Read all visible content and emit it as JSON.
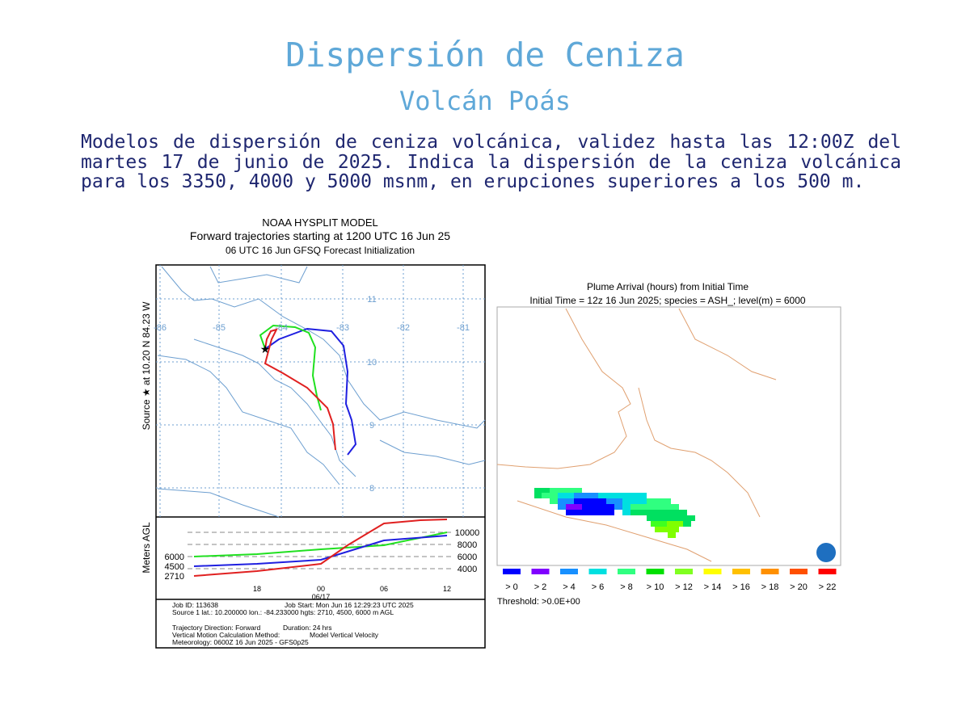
{
  "header": {
    "title": "Dispersión de Ceniza",
    "subtitle": "Volcán Poás"
  },
  "description": "Modelos de dispersión de ceniza volcánica, validez hasta las 12:00Z del martes 17 de junio de 2025. Indica la dispersión de la ceniza volcánica para los 3350, 4000 y 5000 msnm, en erupciones superiores a los 500 m.",
  "trajectory_figure": {
    "title_lines": [
      "NOAA HYSPLIT MODEL",
      "Forward trajectories starting at 1200 UTC 16 Jun 25",
      "06 UTC 16 Jun    GFSQ  Forecast Initialization"
    ],
    "side_label": "Source ★  at  10.20 N  84.23 W",
    "lon_labels": [
      "-86",
      "-85",
      "-84",
      "-83",
      "-82",
      "-81"
    ],
    "lat_labels": [
      "11",
      "10",
      "9",
      "8"
    ],
    "height_axis_label": "Meters AGL",
    "start_heights": [
      "6000",
      "4500",
      "2710"
    ],
    "height_ticks": [
      "10000",
      "8000",
      "6000",
      "4000"
    ],
    "time_labels": [
      "18",
      "00",
      "06",
      "12"
    ],
    "date_label": "06/17",
    "info_lines": [
      "Job ID: 113638",
      "Job Start: Mon Jun 16 12:29:23 UTC 2025",
      "Source 1 lat.: 10.200000  lon.: -84.233000  hgts: 2710, 4500, 6000 m AGL",
      "Trajectory Direction: Forward",
      "Duration: 24 hrs",
      "Vertical Motion Calculation Method:",
      "Model Vertical Velocity",
      "Meteorology: 0600Z 16 Jun 2025 - GFS0p25"
    ]
  },
  "plume_figure": {
    "title_lines": [
      "Plume Arrival (hours) from Initial Time",
      "Initial Time = 12z 16 Jun 2025;  species = ASH_;  level(m) =  6000"
    ],
    "legend": [
      "> 0",
      "> 2",
      "> 4",
      "> 6",
      "> 8",
      "> 10",
      "> 12",
      "> 14",
      "> 16",
      "> 18",
      "> 20",
      "> 22"
    ],
    "threshold": "Threshold: >0.0E+00"
  }
}
